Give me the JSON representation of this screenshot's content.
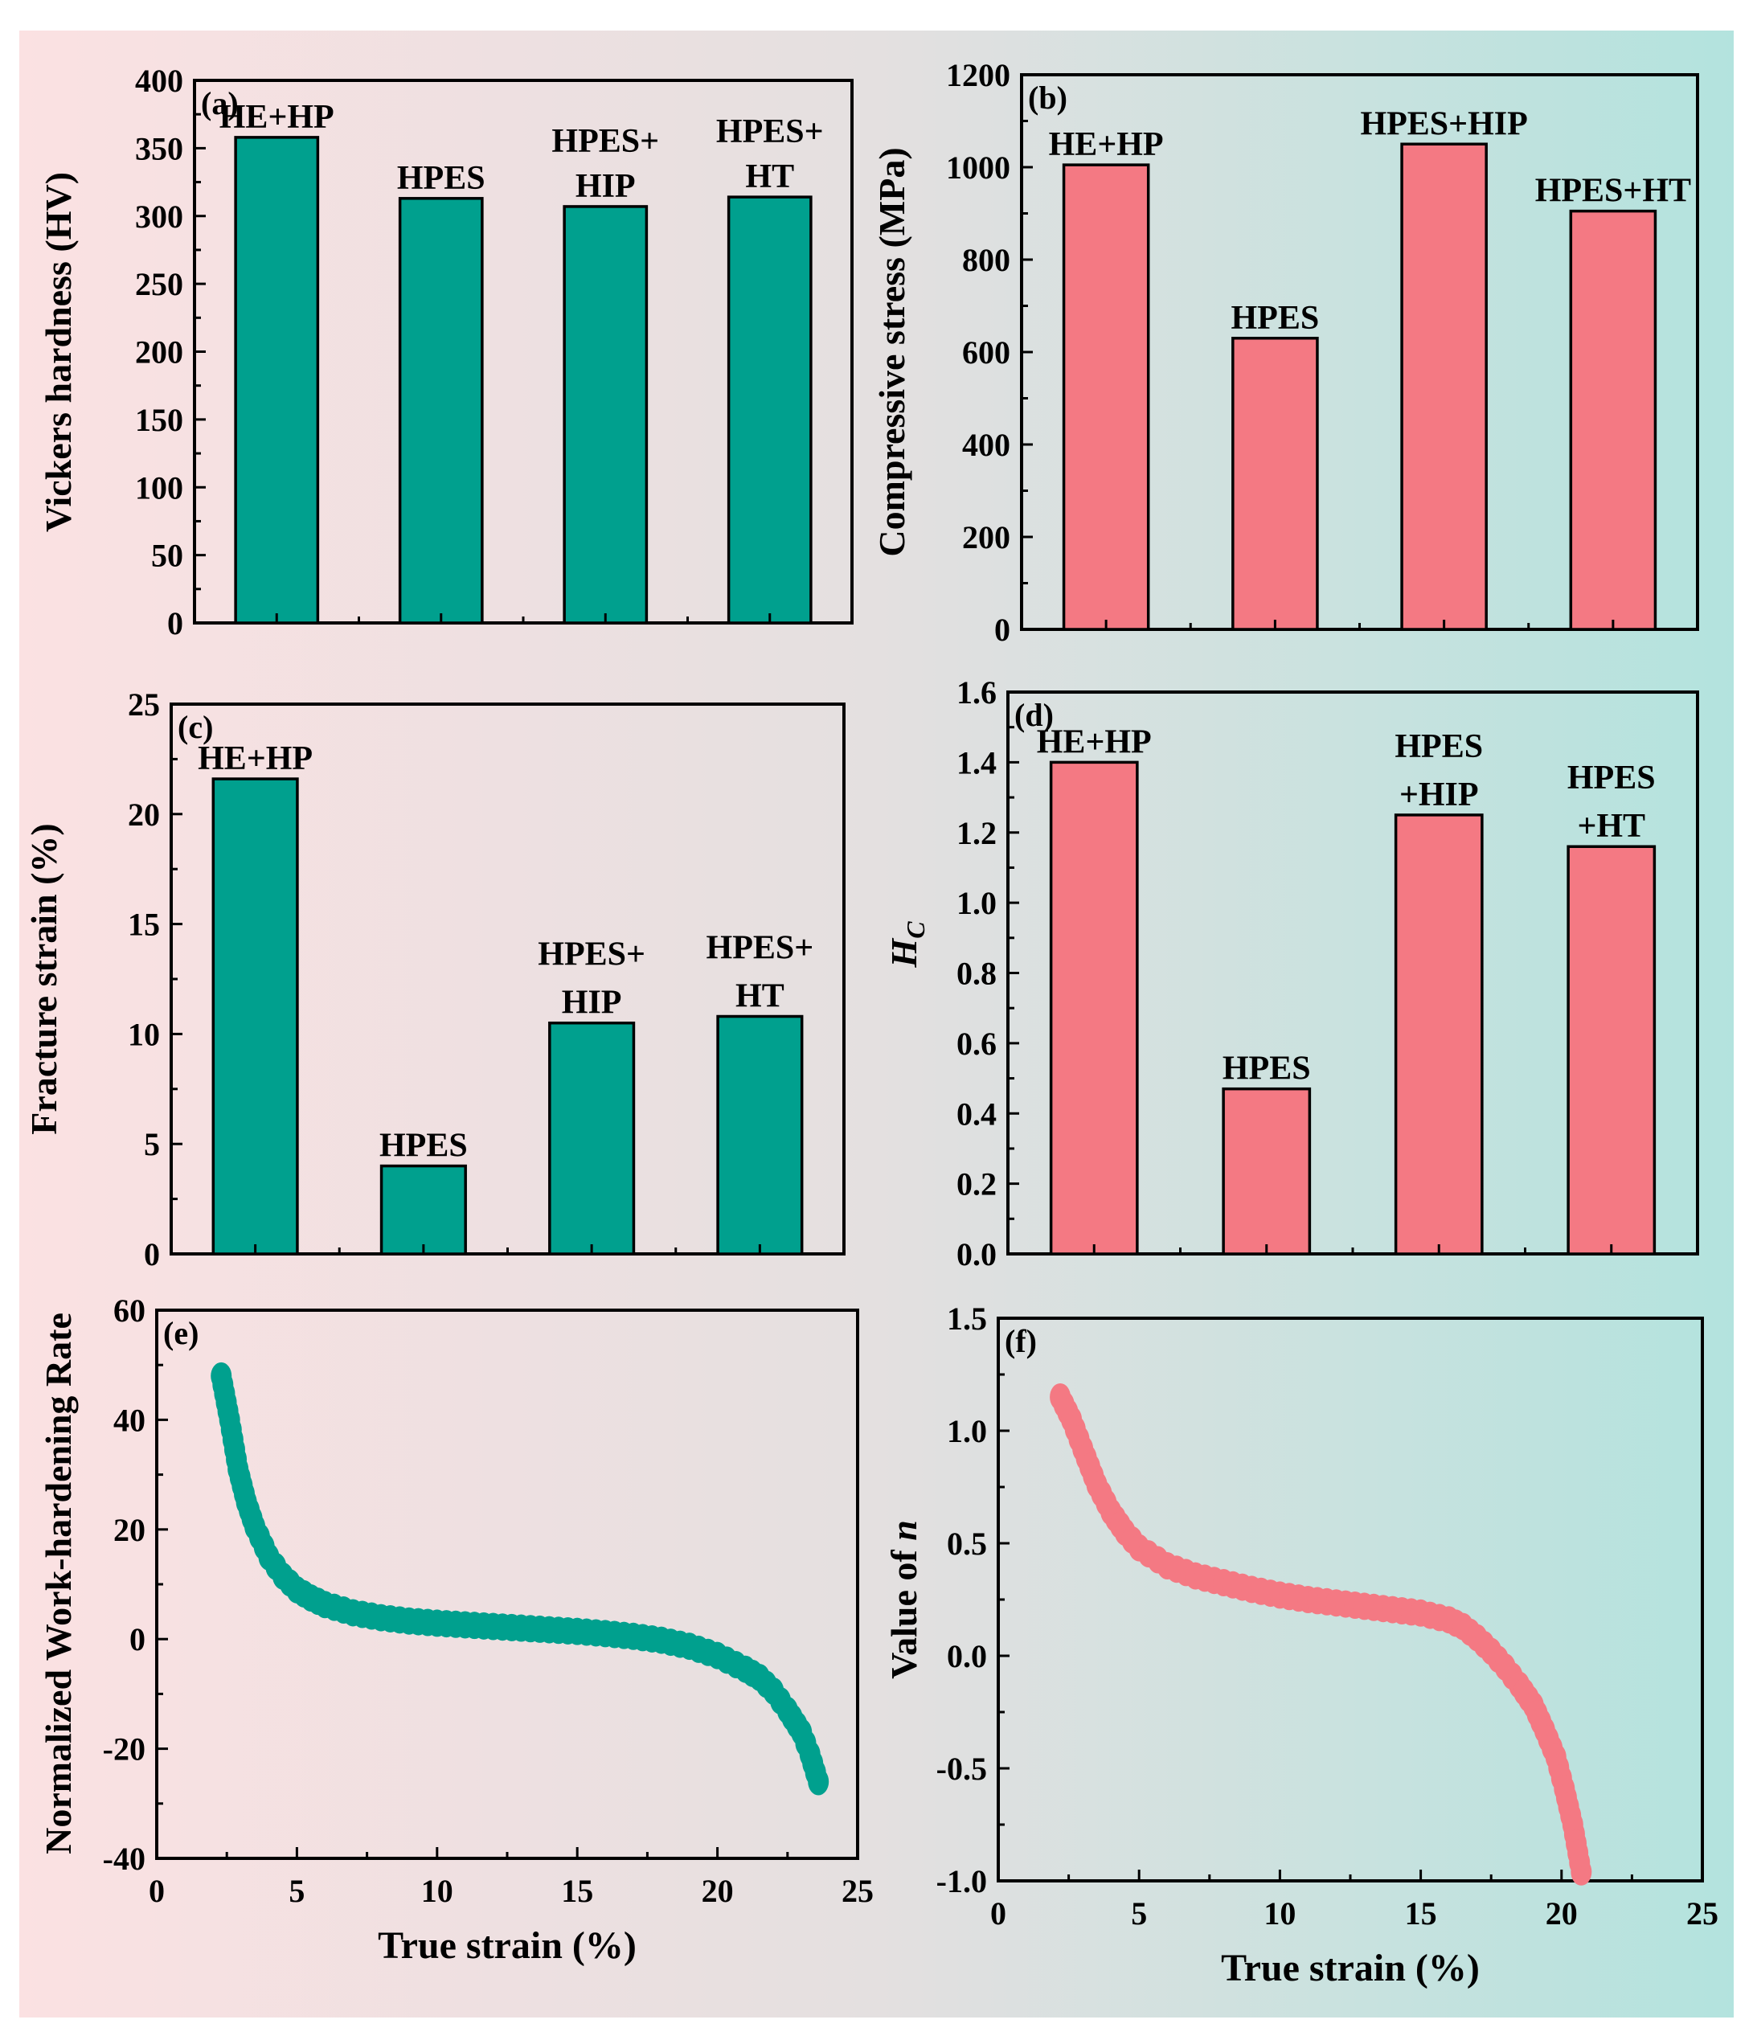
{
  "colors": {
    "teal": "#00a08e",
    "pink": "#f47983",
    "bg_left": "#fbe1e2",
    "bg_mid": "#e3e0e0",
    "bg_right": "#b5e3de"
  },
  "chart_data": [
    {
      "panel": "(a)",
      "type": "bar",
      "color": "teal",
      "ylabel": "Vickers hardness (HV)",
      "xlabel": "",
      "ylim": [
        0,
        400
      ],
      "yticks": [
        0,
        50,
        100,
        150,
        200,
        250,
        300,
        350,
        400
      ],
      "categories": [
        "HE+HP",
        "HPES",
        "HPES+HIP",
        "HPES+HT"
      ],
      "bar_labels": [
        [
          "HE+HP"
        ],
        [
          "HPES"
        ],
        [
          "HPES+",
          "HIP"
        ],
        [
          "HPES+",
          "HT"
        ]
      ],
      "values": [
        358,
        313,
        307,
        314
      ]
    },
    {
      "panel": "(b)",
      "type": "bar",
      "color": "pink",
      "ylabel": "Compressive stress (MPa)",
      "xlabel": "",
      "ylim": [
        0,
        1200
      ],
      "yticks": [
        0,
        200,
        400,
        600,
        800,
        1000,
        1200
      ],
      "categories": [
        "HE+HP",
        "HPES",
        "HPES+HIP",
        "HPES+HT"
      ],
      "bar_labels": [
        [
          "HE+HP"
        ],
        [
          "HPES"
        ],
        [
          "HPES+HIP"
        ],
        [
          "HPES+HT"
        ]
      ],
      "values": [
        1005,
        630,
        1050,
        905
      ]
    },
    {
      "panel": "(c)",
      "type": "bar",
      "color": "teal",
      "ylabel": "Fracture strain (%)",
      "xlabel": "",
      "ylim": [
        0,
        25
      ],
      "yticks": [
        0,
        5,
        10,
        15,
        20,
        25
      ],
      "categories": [
        "HE+HP",
        "HPES",
        "HPES+HIP",
        "HPES+HT"
      ],
      "bar_labels": [
        [
          "HE+HP"
        ],
        [
          "HPES"
        ],
        [
          "HPES+",
          "HIP"
        ],
        [
          "HPES+",
          "HT"
        ]
      ],
      "values": [
        21.6,
        4.0,
        10.5,
        10.8
      ]
    },
    {
      "panel": "(d)",
      "type": "bar",
      "color": "pink",
      "ylabel": "H",
      "ylabel_sub": "C",
      "xlabel": "",
      "ylim": [
        0,
        1.6
      ],
      "yticks": [
        "0.0",
        "0.2",
        "0.4",
        "0.6",
        "0.8",
        "1.0",
        "1.2",
        "1.4",
        "1.6"
      ],
      "categories": [
        "HE+HP",
        "HPES",
        "HPES+HIP",
        "HPES+HT"
      ],
      "bar_labels": [
        [
          "HE+HP"
        ],
        [
          "HPES"
        ],
        [
          "HPES",
          "+HIP"
        ],
        [
          "HPES",
          "+HT"
        ]
      ],
      "values": [
        1.4,
        0.47,
        1.25,
        1.16
      ]
    },
    {
      "panel": "(e)",
      "type": "scatter",
      "color": "teal",
      "ylabel": "Normalized Work-hardening Rate",
      "xlabel": "True strain (%)",
      "xlim": [
        0,
        25
      ],
      "ylim": [
        -40,
        60
      ],
      "xticks": [
        0,
        5,
        10,
        15,
        20,
        25
      ],
      "yticks": [
        -40,
        -20,
        0,
        20,
        40,
        60
      ],
      "curve": [
        [
          2.3,
          48
        ],
        [
          2.6,
          40
        ],
        [
          2.9,
          31
        ],
        [
          3.2,
          25
        ],
        [
          3.5,
          20.5
        ],
        [
          4.0,
          15
        ],
        [
          4.5,
          11.5
        ],
        [
          5.0,
          9
        ],
        [
          5.5,
          7.5
        ],
        [
          6.0,
          6.3
        ],
        [
          7.0,
          4.8
        ],
        [
          8.0,
          3.9
        ],
        [
          9.0,
          3.3
        ],
        [
          10.0,
          2.9
        ],
        [
          11.0,
          2.6
        ],
        [
          12.0,
          2.3
        ],
        [
          13.0,
          2.0
        ],
        [
          14.0,
          1.7
        ],
        [
          15.0,
          1.4
        ],
        [
          16.0,
          1.0
        ],
        [
          17.0,
          0.5
        ],
        [
          18.0,
          -0.2
        ],
        [
          19.0,
          -1.3
        ],
        [
          20.0,
          -3.0
        ],
        [
          21.0,
          -5.5
        ],
        [
          21.5,
          -7.0
        ],
        [
          22.0,
          -9.5
        ],
        [
          22.5,
          -13
        ],
        [
          23.0,
          -17
        ],
        [
          23.3,
          -21
        ],
        [
          23.6,
          -26
        ]
      ]
    },
    {
      "panel": "(f)",
      "type": "scatter",
      "color": "pink",
      "ylabel": "Value of ",
      "ylabel_var": "n",
      "xlabel": "True strain (%)",
      "xlim": [
        0,
        25
      ],
      "ylim": [
        -1.0,
        1.5
      ],
      "xticks": [
        0,
        5,
        10,
        15,
        20,
        25
      ],
      "yticks": [
        "-1.0",
        "-0.5",
        "0.0",
        "0.5",
        "1.0",
        "1.5"
      ],
      "curve": [
        [
          2.2,
          1.15
        ],
        [
          2.6,
          1.05
        ],
        [
          3.0,
          0.92
        ],
        [
          3.5,
          0.76
        ],
        [
          4.0,
          0.64
        ],
        [
          4.5,
          0.55
        ],
        [
          5.0,
          0.48
        ],
        [
          6.0,
          0.4
        ],
        [
          7.0,
          0.355
        ],
        [
          8.0,
          0.325
        ],
        [
          9.0,
          0.295
        ],
        [
          10.0,
          0.27
        ],
        [
          11.0,
          0.25
        ],
        [
          12.0,
          0.235
        ],
        [
          13.0,
          0.22
        ],
        [
          14.0,
          0.205
        ],
        [
          15.0,
          0.19
        ],
        [
          16.0,
          0.16
        ],
        [
          16.5,
          0.13
        ],
        [
          17.0,
          0.08
        ],
        [
          17.5,
          0.02
        ],
        [
          18.0,
          -0.05
        ],
        [
          18.5,
          -0.13
        ],
        [
          19.0,
          -0.22
        ],
        [
          19.4,
          -0.33
        ],
        [
          19.8,
          -0.45
        ],
        [
          20.1,
          -0.59
        ],
        [
          20.4,
          -0.75
        ],
        [
          20.7,
          -0.96
        ]
      ]
    }
  ]
}
